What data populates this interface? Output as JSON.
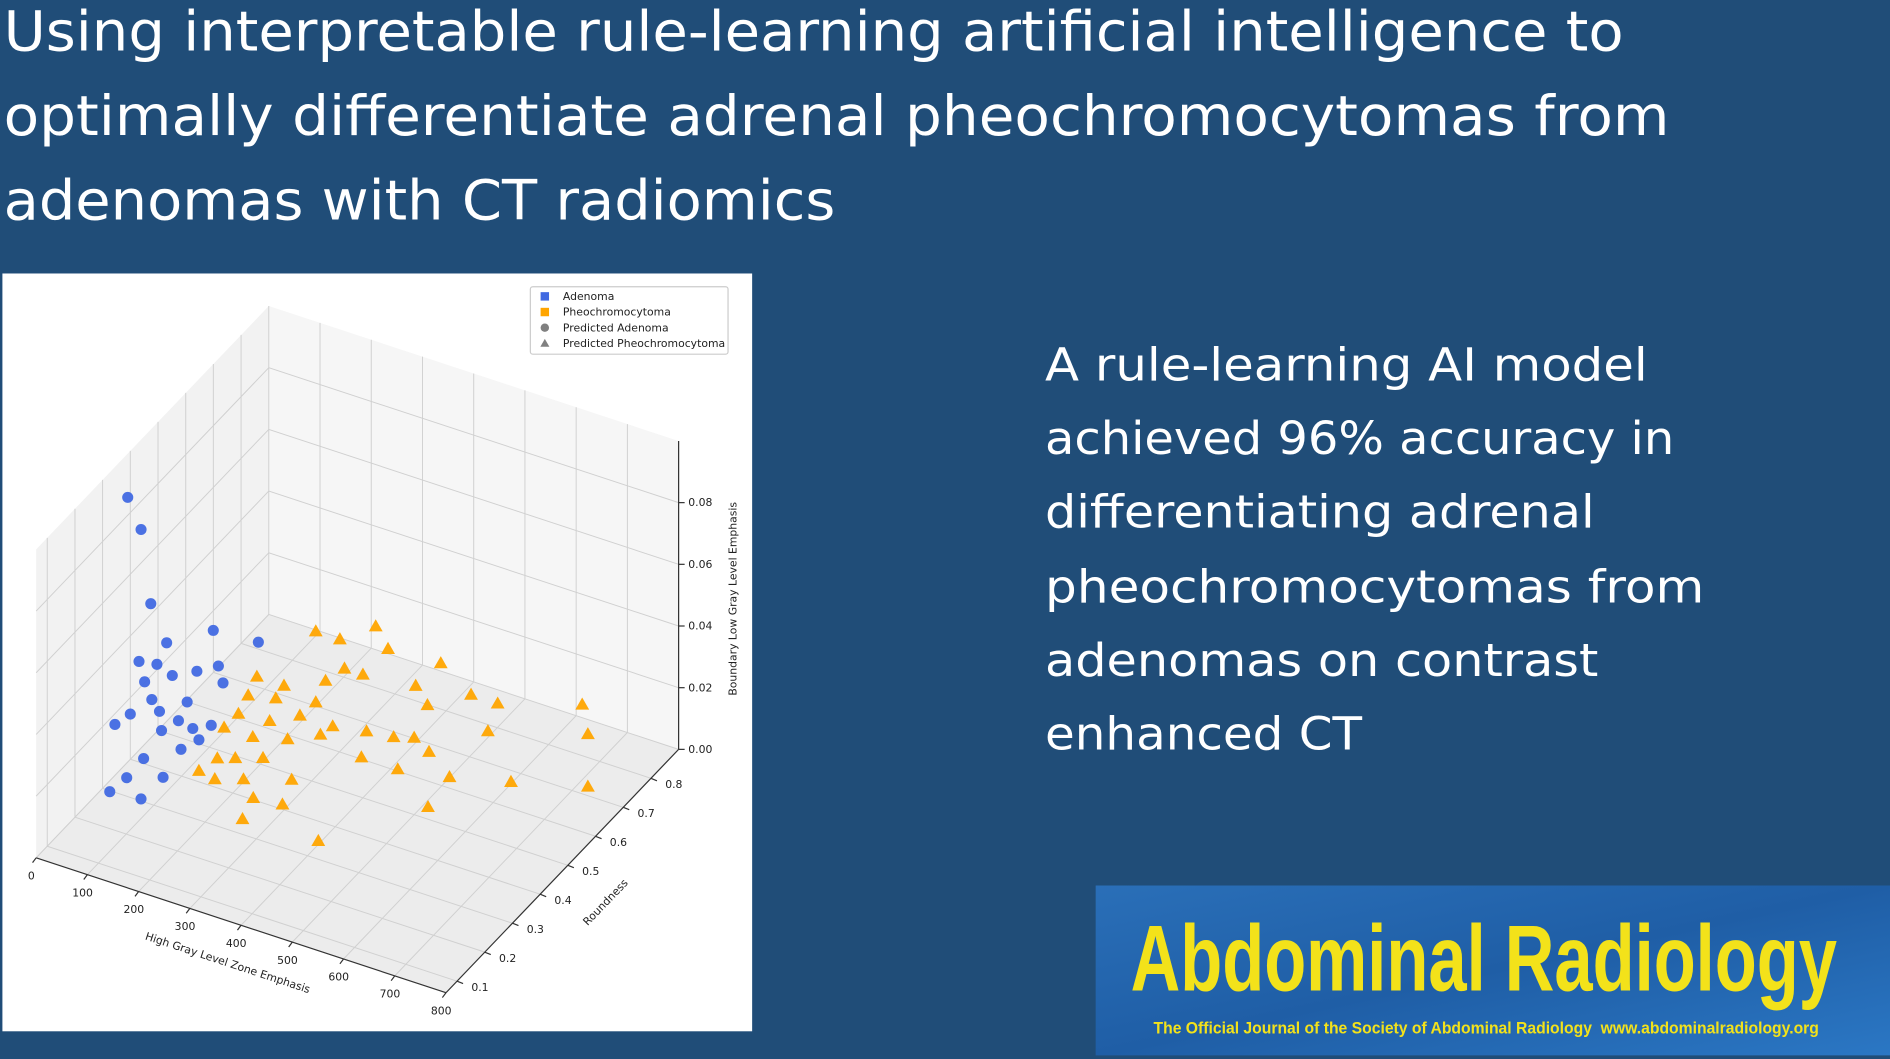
{
  "title_lines": [
    "Using interpretable rule-learning artificial intelligence to",
    "optimally differentiate adrenal pheochromocytomas from",
    "adenomas with CT radiomics"
  ],
  "summary_lines": [
    "A rule-learning AI model",
    "achieved 96% accuracy in",
    "differentiating adrenal",
    "pheochromocytomas from",
    "adenomas on contrast",
    "enhanced CT"
  ],
  "journal": {
    "name": "Abdominal Radiology",
    "tagline": "The Official Journal of the Society of Abdominal Radiology  www.abdominalradiology.org"
  },
  "chart_data": {
    "type": "scatter3d",
    "xlabel": "High Gray Level Zone Emphasis",
    "ylabel": "Roundness",
    "zlabel": "Boundary Low Gray Level Emphasis",
    "xlim": [
      0,
      800
    ],
    "ylim": [
      0.06,
      0.9
    ],
    "zlim": [
      0,
      0.1
    ],
    "xticks": [
      0,
      100,
      200,
      300,
      400,
      500,
      600,
      700,
      800
    ],
    "yticks": [
      0.1,
      0.2,
      0.3,
      0.4,
      0.5,
      0.6,
      0.7,
      0.8
    ],
    "zticks": [
      {
        "value": 0,
        "label": "0.00"
      },
      0.02,
      0.04,
      0.06,
      0.08
    ],
    "grid": true,
    "legend": "upper right",
    "series": [
      {
        "name": "Adenoma",
        "color": "#4169e1",
        "marker": "circle",
        "x": [
          49,
          75,
          94,
          216,
          304,
          125,
          71,
          106,
          184,
          226,
          82,
          136,
          235,
          96,
          165,
          54,
          111,
          24,
          148,
          212,
          115,
          176,
          80,
          153,
          188,
          47,
          68,
          129,
          118
        ],
        "y": [
          0.3,
          0.3,
          0.3,
          0.3,
          0.3,
          0.3,
          0.3,
          0.3,
          0.3,
          0.3,
          0.3,
          0.3,
          0.3,
          0.3,
          0.3,
          0.3,
          0.3,
          0.3,
          0.3,
          0.3,
          0.3,
          0.3,
          0.3,
          0.3,
          0.3,
          0.3,
          0.2,
          0.2,
          0.3
        ],
        "z": [
          0.097,
          0.088,
          0.065,
          0.063,
          0.064,
          0.054,
          0.045,
          0.046,
          0.048,
          0.052,
          0.039,
          0.044,
          0.047,
          0.034,
          0.037,
          0.027,
          0.031,
          0.022,
          0.03,
          0.032,
          0.025,
          0.029,
          0.014,
          0.021,
          0.026,
          0.006,
          0.012,
          0.013,
          0.01
        ]
      },
      {
        "name": "Pheochromocytoma",
        "color": "#ffa500",
        "marker": "triangle",
        "x": [
          308,
          425,
          355,
          449,
          364,
          400,
          552,
          193,
          246,
          327,
          503,
          176,
          230,
          308,
          611,
          663,
          720,
          731,
          157,
          218,
          277,
          341,
          407,
          460,
          526,
          644,
          129,
          185,
          253,
          317,
          500,
          224,
          259,
          313,
          188,
          219,
          275,
          369,
          397,
          468,
          529,
          569,
          689,
          527,
          294,
          351,
          273,
          421,
          731
        ],
        "y": [
          0.5,
          0.5,
          0.5,
          0.5,
          0.5,
          0.5,
          0.5,
          0.5,
          0.5,
          0.5,
          0.5,
          0.5,
          0.5,
          0.5,
          0.5,
          0.5,
          0.7,
          0.7,
          0.5,
          0.5,
          0.5,
          0.5,
          0.5,
          0.5,
          0.5,
          0.5,
          0.5,
          0.5,
          0.5,
          0.5,
          0.5,
          0.3,
          0.3,
          0.3,
          0.3,
          0.3,
          0.3,
          0.3,
          0.5,
          0.5,
          0.5,
          0.5,
          0.5,
          0.5,
          0.3,
          0.3,
          0.3,
          0.3,
          0.7
        ],
        "z": [
          0.049,
          0.057,
          0.049,
          0.051,
          0.04,
          0.04,
          0.052,
          0.028,
          0.028,
          0.034,
          0.042,
          0.021,
          0.023,
          0.026,
          0.045,
          0.045,
          0.029,
          0.02,
          0.014,
          0.015,
          0.02,
          0.02,
          0.022,
          0.023,
          0.037,
          0.035,
          0.008,
          0.008,
          0.011,
          0.016,
          0.025,
          0.022,
          0.024,
          0.027,
          0.016,
          0.015,
          0.018,
          0.023,
          0.013,
          0.013,
          0.022,
          0.016,
          0.021,
          0.004,
          0.013,
          0.014,
          0.005,
          0.006,
          0.003
        ]
      }
    ],
    "prediction_legend": [
      {
        "name": "Predicted Adenoma",
        "marker": "circle",
        "color": "#808080"
      },
      {
        "name": "Predicted Pheochromocytoma",
        "marker": "triangle",
        "color": "#808080"
      }
    ]
  }
}
